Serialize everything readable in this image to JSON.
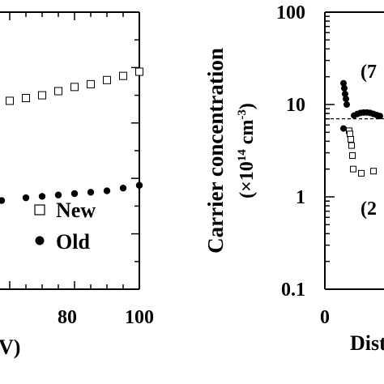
{
  "chart_data": [
    {
      "type": "scatter",
      "panel": "left",
      "xlabel": "V)",
      "ylabel": "",
      "xlim": [
        57,
        100
      ],
      "ylim": [
        0,
        1
      ],
      "x_ticks": [
        "80",
        "100"
      ],
      "x_tick_values": [
        80,
        100
      ],
      "legend": {
        "placement": "bottom-right",
        "entries": [
          "New",
          "Old"
        ]
      },
      "series": [
        {
          "name": "New",
          "marker": "open-square",
          "points": [
            {
              "x": 60,
              "y": 0.68
            },
            {
              "x": 65,
              "y": 0.69
            },
            {
              "x": 70,
              "y": 0.7
            },
            {
              "x": 75,
              "y": 0.715
            },
            {
              "x": 80,
              "y": 0.73
            },
            {
              "x": 85,
              "y": 0.74
            },
            {
              "x": 90,
              "y": 0.755
            },
            {
              "x": 95,
              "y": 0.77
            },
            {
              "x": 100,
              "y": 0.785
            }
          ]
        },
        {
          "name": "Old",
          "marker": "filled-circle",
          "points": [
            {
              "x": 57.5,
              "y": 0.32
            },
            {
              "x": 65,
              "y": 0.33
            },
            {
              "x": 70,
              "y": 0.335
            },
            {
              "x": 75,
              "y": 0.34
            },
            {
              "x": 80,
              "y": 0.345
            },
            {
              "x": 85,
              "y": 0.35
            },
            {
              "x": 90,
              "y": 0.355
            },
            {
              "x": 95,
              "y": 0.365
            },
            {
              "x": 100,
              "y": 0.375
            }
          ]
        }
      ]
    },
    {
      "type": "scatter",
      "panel": "right",
      "ylabel_line1": "Carrier concentration",
      "ylabel_line2_pre": "(×10",
      "ylabel_line2_sup": "14",
      "ylabel_line2_mid": " cm",
      "ylabel_line2_sup2": "-3",
      "ylabel_line2_post": ")",
      "xlabel": "Dist",
      "yscale": "log",
      "ylim": [
        0.1,
        100
      ],
      "y_ticks": [
        "0.1",
        "1",
        "10",
        "100"
      ],
      "y_tick_values": [
        0.1,
        1,
        10,
        100
      ],
      "x_ticks": [
        "0"
      ],
      "x_tick_values": [
        0
      ],
      "annotations": [
        "(7",
        "(2"
      ],
      "reference_line_value": 7,
      "series": [
        {
          "marker": "filled-circle",
          "points": [
            {
              "x": 0.23,
              "y": 17
            },
            {
              "x": 0.24,
              "y": 15
            },
            {
              "x": 0.25,
              "y": 13
            },
            {
              "x": 0.26,
              "y": 11.5
            },
            {
              "x": 0.27,
              "y": 10
            },
            {
              "x": 0.23,
              "y": 5.5
            },
            {
              "x": 0.36,
              "y": 7.6
            },
            {
              "x": 0.4,
              "y": 7.9
            },
            {
              "x": 0.44,
              "y": 8.1
            },
            {
              "x": 0.48,
              "y": 8.2
            },
            {
              "x": 0.52,
              "y": 8.2
            },
            {
              "x": 0.56,
              "y": 8.1
            },
            {
              "x": 0.6,
              "y": 7.9
            },
            {
              "x": 0.64,
              "y": 7.7
            },
            {
              "x": 0.68,
              "y": 7.5
            }
          ]
        },
        {
          "marker": "open-square",
          "points": [
            {
              "x": 0.3,
              "y": 5.2
            },
            {
              "x": 0.31,
              "y": 4.8
            },
            {
              "x": 0.32,
              "y": 4.2
            },
            {
              "x": 0.33,
              "y": 3.6
            },
            {
              "x": 0.34,
              "y": 2.8
            },
            {
              "x": 0.35,
              "y": 2.0
            },
            {
              "x": 0.45,
              "y": 1.8
            },
            {
              "x": 0.6,
              "y": 1.9
            }
          ]
        }
      ]
    }
  ]
}
